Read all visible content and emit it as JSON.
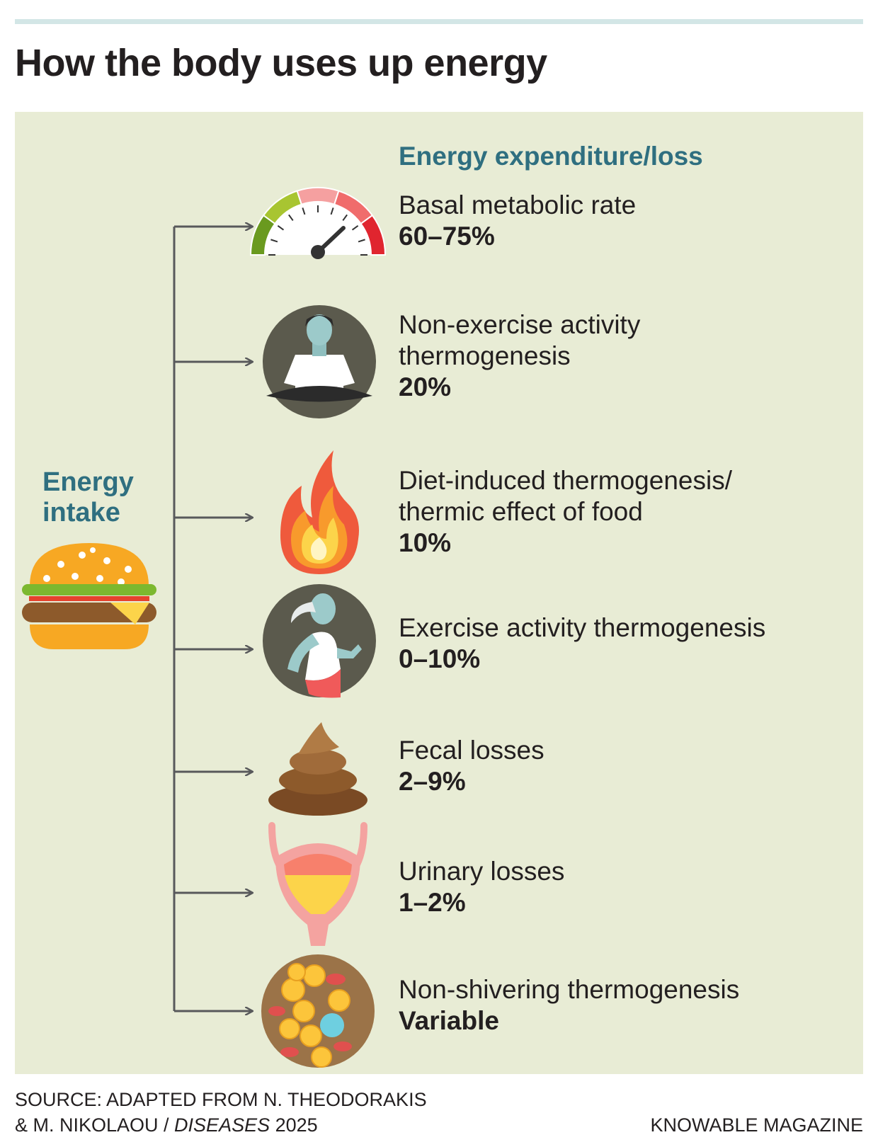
{
  "title": "How the body uses up energy",
  "intake": {
    "label": [
      "Energy",
      "intake"
    ]
  },
  "expenditure": {
    "heading": "Energy expenditure/loss",
    "items": [
      {
        "name": [
          "Basal metabolic rate"
        ],
        "share": "60–75%"
      },
      {
        "name": [
          "Non-exercise activity",
          "thermogenesis"
        ],
        "share": "20%"
      },
      {
        "name": [
          "Diet-induced thermogenesis/",
          "thermic effect of food"
        ],
        "share": "10%"
      },
      {
        "name": [
          "Exercise activity thermogenesis"
        ],
        "share": "0–10%"
      },
      {
        "name": [
          "Fecal losses"
        ],
        "share": "2–9%"
      },
      {
        "name": [
          "Urinary losses"
        ],
        "share": "1–2%"
      },
      {
        "name": [
          "Non-shivering thermogenesis"
        ],
        "share": "Variable"
      }
    ]
  },
  "footer": {
    "source_line1": "SOURCE: ADAPTED FROM N. THEODORAKIS",
    "source_line2": "& M. NIKOLAOU / ",
    "journal": "DISEASES",
    "year": " 2025",
    "credit": "KNOWABLE MAGAZINE"
  }
}
